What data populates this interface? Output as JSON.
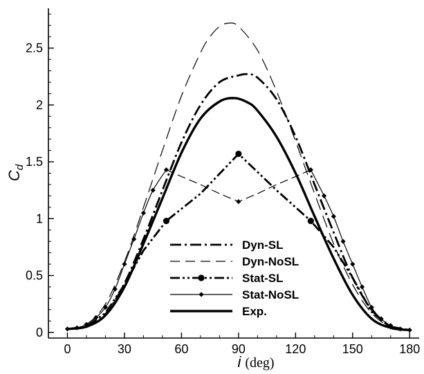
{
  "chart_data": {
    "type": "line",
    "xlabel": "i",
    "xlabel_unit": "(deg)",
    "ylabel": "C",
    "ylabel_sub": "d",
    "xlim": [
      -10,
      185
    ],
    "ylim": [
      -0.05,
      2.85
    ],
    "x_ticks": [
      0,
      30,
      60,
      90,
      120,
      150,
      180
    ],
    "y_ticks": [
      0,
      0.5,
      1,
      1.5,
      2,
      2.5
    ],
    "y_tick_labels": [
      "0",
      "0.5",
      "1",
      "1.5",
      "2",
      "2.5"
    ],
    "legend_position": "bottom-center",
    "grid": false,
    "series": [
      {
        "name": "Dyn-SL",
        "style": "dash-dot",
        "x": [
          0,
          10,
          20,
          30,
          40,
          50,
          60,
          70,
          80,
          90,
          95,
          100,
          110,
          120,
          130,
          140,
          150,
          160,
          170,
          180
        ],
        "y": [
          0.03,
          0.05,
          0.16,
          0.43,
          0.82,
          1.25,
          1.67,
          2.0,
          2.2,
          2.26,
          2.27,
          2.24,
          2.05,
          1.72,
          1.3,
          0.88,
          0.48,
          0.2,
          0.05,
          0.02
        ]
      },
      {
        "name": "Dyn-NoSL",
        "style": "long-dash",
        "x": [
          0,
          10,
          20,
          30,
          40,
          50,
          60,
          70,
          75,
          80,
          85,
          90,
          100,
          110,
          120,
          130,
          140,
          150,
          160,
          170,
          180
        ],
        "y": [
          0.03,
          0.07,
          0.25,
          0.62,
          1.1,
          1.6,
          2.08,
          2.46,
          2.6,
          2.69,
          2.72,
          2.69,
          2.48,
          2.12,
          1.68,
          1.22,
          0.78,
          0.42,
          0.17,
          0.05,
          0.02
        ]
      },
      {
        "name": "Stat-SL",
        "style": "dash-dot-dot",
        "markers": "circle",
        "x": [
          0,
          10,
          20,
          30,
          40,
          52,
          70,
          90,
          110,
          128,
          140,
          150,
          160,
          170,
          180
        ],
        "y": [
          0.03,
          0.05,
          0.17,
          0.42,
          0.72,
          0.98,
          1.22,
          1.57,
          1.25,
          0.98,
          0.75,
          0.48,
          0.18,
          0.05,
          0.02
        ],
        "marker_x": [
          52,
          90,
          128
        ],
        "marker_y": [
          0.98,
          1.57,
          0.98
        ]
      },
      {
        "name": "Stat-NoSL",
        "style": "thin-solid-and-dash",
        "markers": "diamond",
        "x": [
          0,
          5,
          10,
          15,
          20,
          25,
          30,
          35,
          40,
          45,
          52,
          60,
          70,
          80,
          90,
          100,
          110,
          120,
          128,
          135,
          140,
          145,
          150,
          155,
          160,
          165,
          170,
          175,
          180
        ],
        "y": [
          0.03,
          0.04,
          0.07,
          0.13,
          0.22,
          0.38,
          0.6,
          0.82,
          1.05,
          1.25,
          1.43,
          1.37,
          1.3,
          1.22,
          1.15,
          1.22,
          1.3,
          1.37,
          1.43,
          1.2,
          1.02,
          0.8,
          0.6,
          0.4,
          0.22,
          0.12,
          0.06,
          0.03,
          0.02
        ],
        "marker_x": [
          0,
          5,
          10,
          15,
          20,
          25,
          30,
          35,
          40,
          45,
          52,
          90,
          128,
          135,
          140,
          145,
          150,
          155,
          160,
          165,
          170,
          175,
          180
        ],
        "marker_y": [
          0.03,
          0.04,
          0.07,
          0.13,
          0.22,
          0.38,
          0.6,
          0.82,
          1.05,
          1.25,
          1.43,
          1.15,
          1.43,
          1.2,
          1.02,
          0.8,
          0.6,
          0.4,
          0.22,
          0.12,
          0.06,
          0.03,
          0.02
        ]
      },
      {
        "name": "Exp.",
        "style": "thick-solid",
        "x": [
          0,
          10,
          20,
          30,
          40,
          50,
          60,
          70,
          80,
          88,
          95,
          100,
          110,
          120,
          130,
          140,
          150,
          160,
          170,
          180
        ],
        "y": [
          0.03,
          0.05,
          0.15,
          0.4,
          0.78,
          1.18,
          1.58,
          1.88,
          2.03,
          2.06,
          2.02,
          1.95,
          1.72,
          1.4,
          1.02,
          0.65,
          0.33,
          0.12,
          0.04,
          0.02
        ]
      }
    ]
  }
}
